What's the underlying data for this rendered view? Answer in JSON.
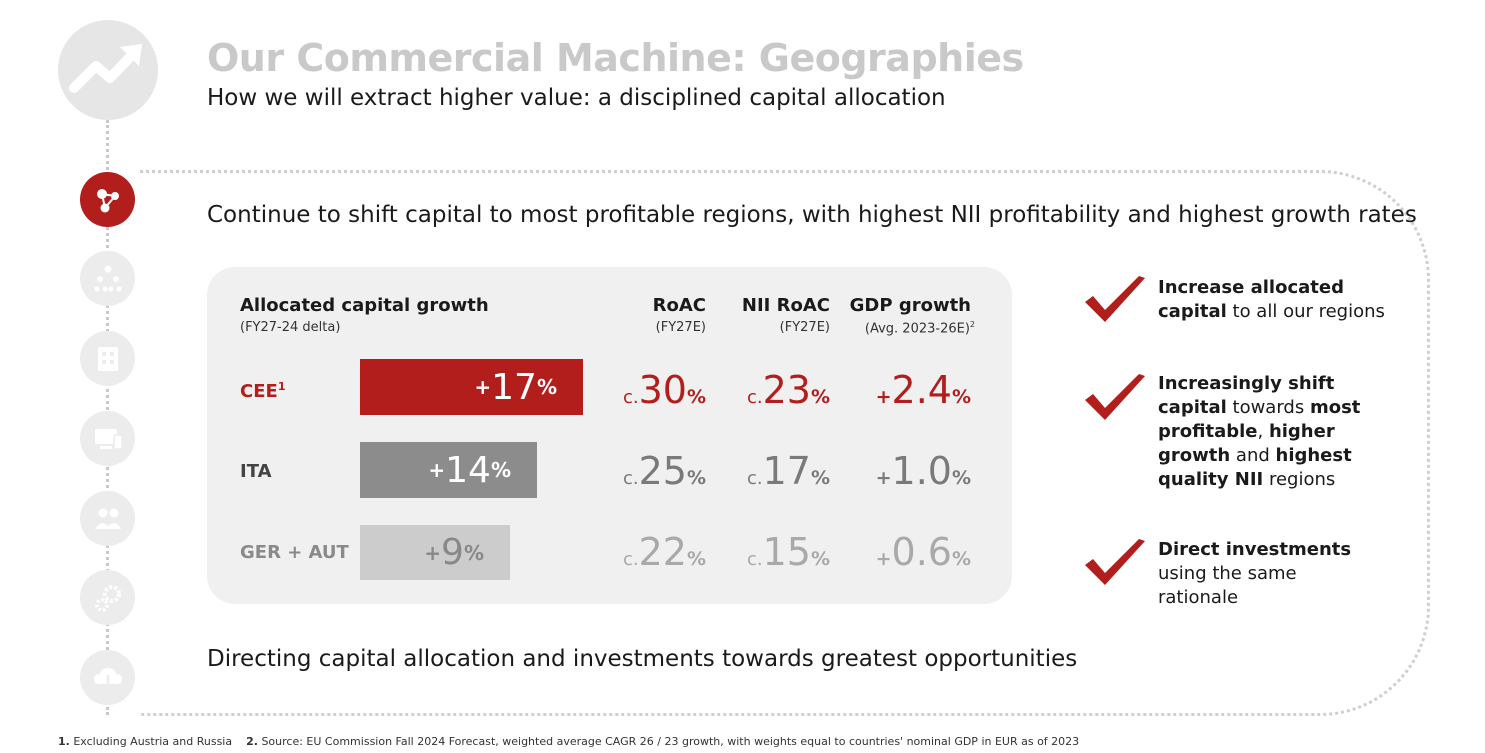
{
  "title": "Our Commercial Machine: Geographies",
  "subtitle": "How we will extract higher value: a disciplined capital allocation",
  "lead": "Continue to shift capital to most profitable regions, with highest NII profitability and highest growth rates",
  "closing": "Directing capital allocation and investments towards greatest opportunities",
  "table": {
    "col1_title": "Allocated capital growth",
    "col1_sub": "(FY27-24 delta)",
    "col2_title": "RoAC",
    "col2_sub": "(FY27E)",
    "col3_title": "NII RoAC",
    "col3_sub": "(FY27E)",
    "col4_title": "GDP growth",
    "col4_sub": "(Avg. 2023-26E)",
    "col4_sup": "2",
    "rows": [
      {
        "label": "CEE",
        "sup": "1",
        "sign": "+",
        "growth": "17",
        "growth_pct": 17,
        "pct": "%",
        "pre": "c.",
        "roac": "30",
        "nii": "23",
        "gdp_sign": "+",
        "gdp": "2.4"
      },
      {
        "label": "ITA",
        "sup": "",
        "sign": "+",
        "growth": "14",
        "growth_pct": 14,
        "pct": "%",
        "pre": "c.",
        "roac": "25",
        "nii": "17",
        "gdp_sign": "+",
        "gdp": "1.0"
      },
      {
        "label": "GER + AUT",
        "sup": "",
        "sign": "+",
        "growth": "9",
        "growth_pct": 9,
        "pct": "%",
        "pre": "c.",
        "roac": "22",
        "nii": "15",
        "gdp_sign": "+",
        "gdp": "0.6"
      }
    ]
  },
  "bullets": [
    {
      "b1": "Increase allocated capital",
      "t1": " to all our regions"
    },
    {
      "b1": "Increasingly shift capital",
      "t1": " towards ",
      "b2": "most profitable",
      "t2": ", ",
      "b3": "higher growth",
      "t3": " and ",
      "b4": "highest quality NII",
      "t4": " regions"
    },
    {
      "b1": "Direct investments",
      "t1": " using the same rationale"
    }
  ],
  "footnotes": {
    "n1": "1.",
    "t1": "Excluding Austria and Russia",
    "n2": "2.",
    "t2": "Source: EU Commission Fall 2024 Forecast, weighted average CAGR 26 / 23 growth, with weights equal to countries' nominal GDP in EUR as of 2023"
  },
  "colors": {
    "accent": "#b11e1c",
    "ita": "#8c8c8c",
    "ger": "#cccccc",
    "icon_bg": "#ececec"
  },
  "nav_icons": [
    "growth-arrow-icon",
    "capital-network-icon",
    "org-chart-icon",
    "building-icon",
    "devices-icon",
    "people-icon",
    "gears-icon",
    "cloud-download-icon"
  ]
}
